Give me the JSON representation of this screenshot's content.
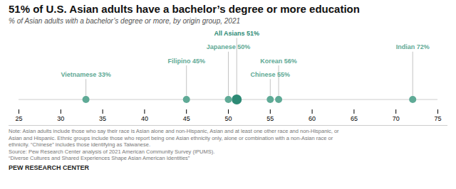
{
  "chart_data": {
    "type": "dot",
    "title": "51% of U.S. Asian adults have a bachelor’s degree or more education",
    "subtitle": "% of Asian adults with a bachelor’s degree or more, by origin group, 2021",
    "categories": [
      "Vietnamese",
      "Filipino",
      "Japanese",
      "All Asians",
      "Chinese",
      "Korean",
      "Indian"
    ],
    "values": [
      33,
      45,
      50,
      51,
      55,
      56,
      72
    ],
    "value_labels": [
      "Vietnamese 33%",
      "Filipino 45%",
      "Japanese 50%",
      "All Asians 51%",
      "Chinese 55%",
      "Korean 56%",
      "Indian 72%"
    ],
    "colors": [
      "#5faa96",
      "#5faa96",
      "#5faa96",
      "#2d8a75",
      "#5faa96",
      "#5faa96",
      "#5faa96"
    ],
    "xlim": [
      25,
      75
    ],
    "xticks": [
      25,
      30,
      35,
      40,
      45,
      50,
      55,
      60,
      65,
      70,
      75
    ],
    "data_labels": true,
    "tick_labels": "x",
    "grid": false,
    "note": "Note: Asian adults include those who say their race is Asian alone and non-Hispanic, Asian and at least one other race and non-Hispanic, or\nAsian and Hispanic. Ethnic groups include those who report being one Asian ethnicity only, alone or combination with a non-Asian race or\nethnicity. “Chinese” includes those identifying as Taiwanese.\nSource: Pew Research Center analysis of 2021 American Community Survey (IPUMS).\n“Diverse Cultures and Shared Experiences Shape Asian American Identities”",
    "footer": "PEW RESEARCH CENTER"
  }
}
